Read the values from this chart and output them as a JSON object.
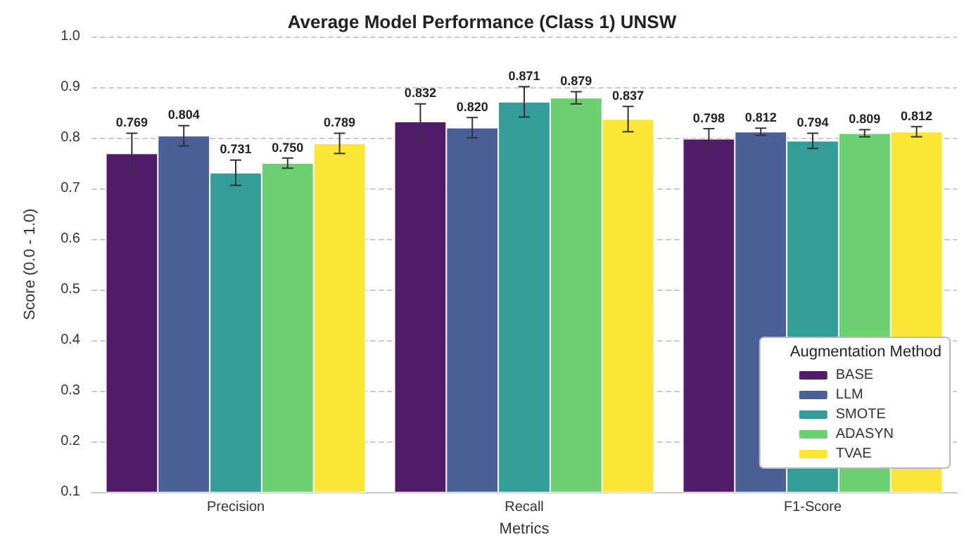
{
  "chart_data": {
    "type": "bar",
    "title": "Average Model Performance (Class 1) UNSW",
    "xlabel": "Metrics",
    "ylabel": "Score (0.0 - 1.0)",
    "legend_title": "Augmentation Method",
    "categories": [
      "Precision",
      "Recall",
      "F1-Score"
    ],
    "series": [
      {
        "name": "BASE",
        "color": "#521c68",
        "values": [
          0.769,
          0.832,
          0.798
        ],
        "errors": [
          0.04,
          0.035,
          0.02
        ]
      },
      {
        "name": "LLM",
        "color": "#4a6096",
        "values": [
          0.804,
          0.82,
          0.812
        ],
        "errors": [
          0.02,
          0.02,
          0.007
        ],
        "value_labels": [
          "0.804",
          "0.820",
          "0.812"
        ]
      },
      {
        "name": "SMOTE",
        "color": "#339e98",
        "values": [
          0.731,
          0.871,
          0.794
        ],
        "errors": [
          0.025,
          0.03,
          0.015
        ]
      },
      {
        "name": "ADASYN",
        "color": "#6ccf70",
        "values": [
          0.75,
          0.879,
          0.809
        ],
        "errors": [
          0.01,
          0.012,
          0.007
        ],
        "value_labels": [
          "0.750",
          "0.879",
          "0.809"
        ]
      },
      {
        "name": "TVAE",
        "color": "#fbe635",
        "values": [
          0.789,
          0.837,
          0.812
        ],
        "errors": [
          0.02,
          0.025,
          0.01
        ]
      }
    ],
    "ylim": [
      0.1,
      1.0
    ],
    "yticks": [
      0.1,
      0.2,
      0.3,
      0.4,
      0.5,
      0.6,
      0.7,
      0.8,
      0.9,
      {
        "value": 1.0,
        "label": "1.0"
      }
    ],
    "grid": "y",
    "legend": "bottom right",
    "data_labels": true
  }
}
